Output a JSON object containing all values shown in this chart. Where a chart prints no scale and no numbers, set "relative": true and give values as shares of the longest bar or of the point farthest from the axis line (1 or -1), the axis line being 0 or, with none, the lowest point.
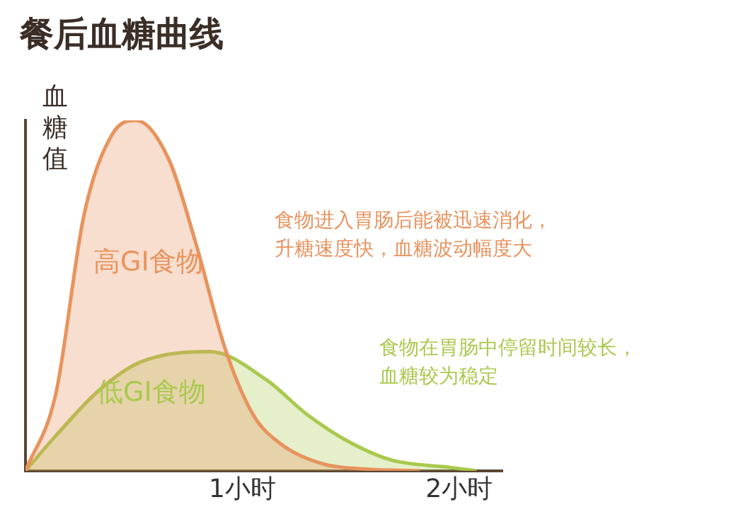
{
  "chart_data": {
    "type": "area",
    "title": "餐后血糖曲线",
    "ylabel": "血糖值",
    "relative": true,
    "xlim": [
      0,
      2.2
    ],
    "xticks": [
      {
        "value": 1,
        "label": "1小时"
      },
      {
        "value": 2,
        "label": "2小时"
      }
    ],
    "series": [
      {
        "name": "高GI食物",
        "color": "#e8935e",
        "x": [
          0,
          0.14,
          0.27,
          0.4,
          0.51,
          0.66,
          0.79,
          0.92,
          1.05,
          1.17,
          1.37,
          1.56,
          1.82
        ],
        "values": [
          0,
          0.22,
          0.73,
          0.96,
          1,
          0.89,
          0.64,
          0.35,
          0.16,
          0.08,
          0.02,
          0.005,
          0
        ]
      },
      {
        "name": "低GI食物",
        "color": "#a9c94e",
        "x": [
          0,
          0.14,
          0.34,
          0.53,
          0.85,
          1.11,
          1.3,
          1.5,
          1.69,
          1.95,
          2.08
        ],
        "values": [
          0,
          0.1,
          0.23,
          0.31,
          0.34,
          0.26,
          0.16,
          0.08,
          0.03,
          0.01,
          0
        ]
      }
    ],
    "annotations": [
      "食物进入胃肠后能被迅速消化，升糖速度快，血糖波动幅度大",
      "食物在胃肠中停留时间较长，血糖较为稳定"
    ],
    "grid": false,
    "legend": false,
    "line_style": "solid",
    "marker": "none"
  }
}
